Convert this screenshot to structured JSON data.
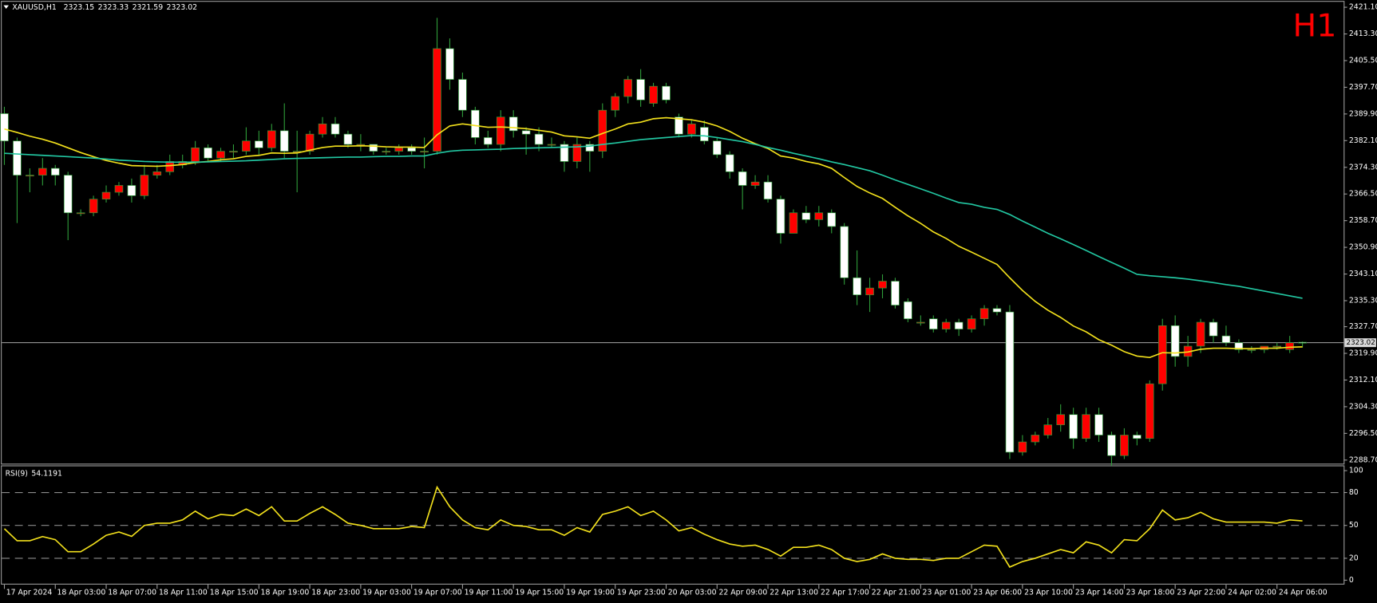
{
  "chart_data": [
    {
      "type": "candlestick",
      "title": "XAUUSD,H1",
      "timeframe": "H1",
      "categories": [
        "17 Apr 2024",
        null,
        null,
        null,
        "18 Apr 03:00",
        null,
        null,
        null,
        "18 Apr 07:00",
        null,
        null,
        null,
        "18 Apr 11:00",
        null,
        null,
        null,
        "18 Apr 15:00",
        null,
        null,
        null,
        "18 Apr 19:00",
        null,
        null,
        null,
        "18 Apr 23:00",
        null,
        null,
        null,
        "19 Apr 03:00",
        null,
        null,
        null,
        "19 Apr 07:00",
        null,
        null,
        null,
        "19 Apr 11:00",
        null,
        null,
        null,
        "19 Apr 15:00",
        null,
        null,
        null,
        "19 Apr 19:00",
        null,
        null,
        null,
        "19 Apr 23:00",
        null,
        null,
        null,
        "20 Apr 03:00",
        null,
        null,
        null,
        "22 Apr 09:00",
        null,
        null,
        null,
        "22 Apr 13:00",
        null,
        null,
        null,
        "22 Apr 17:00",
        null,
        null,
        null,
        "22 Apr 21:00",
        null,
        null,
        null,
        "23 Apr 01:00",
        null,
        null,
        null,
        "23 Apr 06:00",
        null,
        null,
        null,
        "23 Apr 10:00",
        null,
        null,
        null,
        "23 Apr 14:00",
        null,
        null,
        null,
        "23 Apr 18:00",
        null,
        null,
        null,
        "23 Apr 22:00",
        null,
        null,
        null,
        "24 Apr 02:00",
        null,
        null,
        null,
        "24 Apr 06:00",
        null,
        null
      ],
      "open": [
        2390,
        2382,
        2372,
        2372,
        2374,
        2372,
        2361,
        2361,
        2365,
        2367,
        2369,
        2366,
        2372,
        2373,
        2375,
        2376,
        2380,
        2377,
        2379,
        2379,
        2382,
        2380,
        2385,
        2379,
        2379,
        2384,
        2387,
        2384,
        2381,
        2381,
        2379,
        2379,
        2380,
        2379,
        2379,
        2409,
        2400,
        2391,
        2383,
        2381,
        2389,
        2385,
        2384,
        2381,
        2381,
        2376,
        2381,
        2379,
        2391,
        2395,
        2400,
        2393,
        2398,
        2389,
        2384,
        2386,
        2382,
        2378,
        2373,
        2369,
        2370,
        2365,
        2355,
        2361,
        2359,
        2361,
        2357,
        2342,
        2337,
        2339,
        2341,
        2335,
        2329,
        2330,
        2327,
        2329,
        2327,
        2330,
        2333,
        2332,
        2291,
        2294,
        2296,
        2299,
        2302,
        2295,
        2302,
        2296,
        2290,
        2296,
        2295,
        2311,
        2328,
        2319,
        2322,
        2329,
        2325,
        2323,
        2321,
        2321,
        2322,
        2321,
        2323.15
      ],
      "high": [
        2392,
        2383,
        2374,
        2377,
        2375,
        2373,
        2362,
        2366,
        2369,
        2370,
        2371,
        2375,
        2375,
        2378,
        2378,
        2382,
        2381,
        2380,
        2381,
        2386,
        2385,
        2387,
        2393,
        2385,
        2385,
        2389,
        2389,
        2385,
        2384,
        2381,
        2380,
        2381,
        2381,
        2383,
        2418,
        2412,
        2402,
        2392,
        2385,
        2391,
        2391,
        2386,
        2386,
        2383,
        2382,
        2383,
        2382,
        2393,
        2396,
        2401,
        2403,
        2399,
        2399,
        2390,
        2388,
        2388,
        2383,
        2379,
        2374,
        2372,
        2372,
        2366,
        2362,
        2363,
        2363,
        2362,
        2358,
        2350,
        2342,
        2343,
        2342,
        2336,
        2331,
        2331,
        2330,
        2330,
        2331,
        2334,
        2334,
        2334,
        2296,
        2297,
        2301,
        2305,
        2304,
        2304,
        2304,
        2297,
        2298,
        2297,
        2312,
        2330,
        2331,
        2325,
        2330,
        2330,
        2328,
        2324,
        2322,
        2322,
        2323,
        2325,
        2323.33
      ],
      "low": [
        2375,
        2358,
        2367,
        2369,
        2369,
        2353,
        2360,
        2360,
        2364,
        2366,
        2364,
        2365,
        2371,
        2372,
        2374,
        2375,
        2376,
        2376,
        2377,
        2378,
        2378,
        2379,
        2377,
        2367,
        2378,
        2383,
        2383,
        2380,
        2379,
        2378,
        2378,
        2378,
        2378,
        2374,
        2378,
        2397,
        2389,
        2381,
        2380,
        2379,
        2383,
        2378,
        2379,
        2380,
        2373,
        2374,
        2373,
        2377,
        2389,
        2393,
        2392,
        2392,
        2393,
        2383,
        2383,
        2381,
        2377,
        2371,
        2362,
        2368,
        2364,
        2352,
        2355,
        2358,
        2357,
        2355,
        2340,
        2334,
        2332,
        2336,
        2333,
        2329,
        2328,
        2326,
        2326,
        2325,
        2326,
        2328,
        2331,
        2289,
        2290,
        2293,
        2295,
        2297,
        2292,
        2294,
        2294,
        2287,
        2289,
        2293,
        2294,
        2309,
        2316,
        2316,
        2320,
        2323,
        2322,
        2320,
        2320,
        2320,
        2321,
        2320,
        2321.59
      ],
      "close": [
        2382,
        2372,
        2372,
        2374,
        2372,
        2361,
        2361,
        2365,
        2367,
        2369,
        2366,
        2372,
        2373,
        2376,
        2376,
        2380,
        2377,
        2379,
        2379,
        2382,
        2380,
        2385,
        2379,
        2379,
        2384,
        2387,
        2384,
        2381,
        2381,
        2379,
        2379,
        2380,
        2379,
        2379,
        2409,
        2400,
        2391,
        2383,
        2381,
        2389,
        2385,
        2384,
        2381,
        2381,
        2376,
        2381,
        2379,
        2391,
        2395,
        2400,
        2394,
        2398,
        2394,
        2384,
        2387,
        2382,
        2378,
        2373,
        2369,
        2370,
        2365,
        2355,
        2361,
        2359,
        2361,
        2357,
        2342,
        2337,
        2339,
        2341,
        2334,
        2330,
        2329,
        2327,
        2329,
        2327,
        2330,
        2333,
        2332,
        2291,
        2294,
        2296,
        2299,
        2302,
        2295,
        2302,
        2296,
        2290,
        2296,
        2295,
        2311,
        2328,
        2319,
        2322,
        2329,
        2325,
        2323,
        2321,
        2321,
        2322,
        2322,
        2323,
        2323.02
      ],
      "up_color": "#ff0000",
      "down_color": "#ffffff",
      "wick_color": "#2f9e3a",
      "lines": [
        {
          "color": "#f2e01c",
          "values": [
            2385.5,
            2384.5,
            2383.4,
            2382.5,
            2381.4,
            2380.0,
            2378.6,
            2377.4,
            2376.3,
            2375.5,
            2374.8,
            2374.7,
            2374.6,
            2374.8,
            2375.1,
            2375.7,
            2376.0,
            2376.5,
            2376.8,
            2377.5,
            2377.8,
            2378.5,
            2378.4,
            2378.5,
            2379.3,
            2380.1,
            2380.5,
            2380.5,
            2380.6,
            2380.5,
            2380.3,
            2380.2,
            2380.2,
            2380.1,
            2383.8,
            2386.4,
            2387.0,
            2386.5,
            2386.0,
            2386.1,
            2385.9,
            2385.6,
            2385.1,
            2384.6,
            2383.5,
            2383.2,
            2382.8,
            2384.2,
            2385.5,
            2387.0,
            2387.5,
            2388.5,
            2388.8,
            2388.5,
            2388.2,
            2387.5,
            2386.4,
            2384.8,
            2382.8,
            2381.2,
            2379.8,
            2377.6,
            2377.0,
            2376.0,
            2375.3,
            2374.0,
            2371.3,
            2368.7,
            2366.8,
            2365.2,
            2362.6,
            2360.1,
            2357.9,
            2355.4,
            2353.5,
            2351.2,
            2349.5,
            2347.7,
            2345.9,
            2342.0,
            2338.3,
            2335.1,
            2332.5,
            2330.4,
            2327.9,
            2326.2,
            2323.9,
            2322.3,
            2320.4,
            2319.1,
            2318.7,
            2320.1,
            2320.0,
            2320.3,
            2321.1,
            2321.4,
            2321.4,
            2321.3,
            2321.3,
            2321.4,
            2321.4,
            2321.7,
            2321.8
          ]
        },
        {
          "color": "#22c7a2",
          "values": [
            2378.4,
            2378.2,
            2378.0,
            2377.8,
            2377.6,
            2377.4,
            2377.2,
            2377.0,
            2376.7,
            2376.4,
            2376.2,
            2376.0,
            2375.9,
            2375.8,
            2375.8,
            2375.8,
            2375.9,
            2376.0,
            2376.1,
            2376.2,
            2376.4,
            2376.6,
            2376.8,
            2376.9,
            2377.0,
            2377.1,
            2377.2,
            2377.3,
            2377.3,
            2377.4,
            2377.5,
            2377.5,
            2377.6,
            2377.6,
            2378.4,
            2379.0,
            2379.3,
            2379.4,
            2379.5,
            2379.6,
            2379.8,
            2379.9,
            2380.0,
            2380.1,
            2380.2,
            2380.3,
            2380.5,
            2381.0,
            2381.4,
            2381.9,
            2382.4,
            2382.7,
            2383.0,
            2383.3,
            2383.6,
            2383.5,
            2383.0,
            2382.4,
            2381.8,
            2381.0,
            2380.1,
            2379.3,
            2378.4,
            2377.6,
            2376.8,
            2375.9,
            2375.1,
            2374.2,
            2373.3,
            2372.0,
            2370.6,
            2369.3,
            2368.0,
            2366.7,
            2365.3,
            2364.0,
            2363.5,
            2362.6,
            2362.0,
            2360.5,
            2358.6,
            2356.8,
            2355.0,
            2353.4,
            2351.7,
            2350.0,
            2348.2,
            2346.5,
            2344.8,
            2343.0,
            2342.6,
            2342.3,
            2342.0,
            2341.6,
            2341.1,
            2340.6,
            2340.0,
            2339.5,
            2338.8,
            2338.1,
            2337.4,
            2336.7,
            2336.0
          ]
        }
      ],
      "ylim": [
        2287.4,
        2422.7
      ],
      "yticks": [
        {
          "value": 2421.1,
          "label": "2421.10"
        },
        {
          "value": 2413.3,
          "label": "2413.30"
        },
        {
          "value": 2405.5,
          "label": "2405.50"
        },
        {
          "value": 2397.7,
          "label": "2397.70"
        },
        {
          "value": 2389.9,
          "label": "2389.90"
        },
        {
          "value": 2382.1,
          "label": "2382.10"
        },
        {
          "value": 2374.3,
          "label": "2374.30"
        },
        {
          "value": 2366.5,
          "label": "2366.50"
        },
        {
          "value": 2358.7,
          "label": "2358.70"
        },
        {
          "value": 2350.9,
          "label": "2350.90"
        },
        {
          "value": 2343.1,
          "label": "2343.10"
        },
        {
          "value": 2335.3,
          "label": "2335.30"
        },
        {
          "value": 2327.7,
          "label": "2327.70"
        },
        {
          "value": 2319.9,
          "label": "2319.90"
        },
        {
          "value": 2312.1,
          "label": "2312.10"
        },
        {
          "value": 2304.3,
          "label": "2304.30"
        },
        {
          "value": 2296.5,
          "label": "2296.50"
        },
        {
          "value": 2288.7,
          "label": "2288.70"
        }
      ]
    },
    {
      "type": "line",
      "title": "RSI(9)",
      "color": "#f2e01c",
      "values": [
        47,
        36,
        36,
        39.8,
        37,
        26,
        26,
        33,
        41,
        44,
        40,
        50,
        52,
        52,
        55,
        63,
        56,
        60,
        59,
        65,
        59,
        67,
        54,
        54,
        61,
        67,
        60,
        52,
        50,
        47,
        47,
        47,
        49,
        48,
        85,
        67,
        55,
        48,
        46,
        55,
        50,
        49,
        46,
        46,
        41,
        48,
        44,
        60,
        63,
        67,
        59,
        63,
        55,
        45,
        48,
        42,
        37,
        33,
        31,
        32,
        28,
        22,
        30,
        30,
        32,
        28,
        20,
        17,
        19,
        24,
        20,
        19,
        19,
        18,
        20,
        20,
        26,
        32,
        31,
        12,
        17,
        20,
        24,
        28,
        25,
        35,
        32,
        25,
        37,
        36,
        47,
        64,
        55,
        57,
        62,
        56,
        53,
        53,
        53,
        53,
        52,
        55,
        54.1191
      ],
      "ylim": [
        -4,
        104
      ],
      "yticks": [
        0,
        20,
        50,
        80,
        100
      ],
      "levels": [
        20,
        50,
        80
      ]
    }
  ]
}
